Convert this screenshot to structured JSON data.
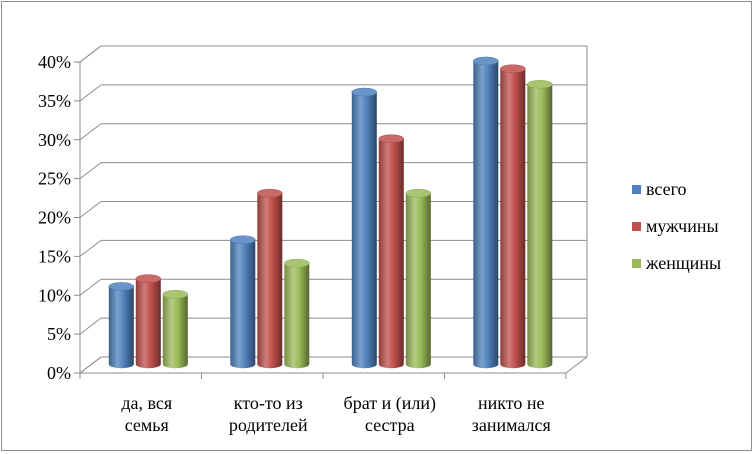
{
  "chart_data": {
    "type": "bar",
    "title": "",
    "xlabel": "",
    "ylabel": "",
    "ylim": [
      0,
      40
    ],
    "ytick_step": 5,
    "ytick_suffix": "%",
    "grid": true,
    "legend_position": "right",
    "categories": [
      [
        "да, вся",
        "семья"
      ],
      [
        "кто-то из",
        "родителей"
      ],
      [
        "брат и (или)",
        "сестра"
      ],
      [
        "никто не",
        "занимался"
      ]
    ],
    "series": [
      {
        "name": "всего",
        "color": "#4f81bd",
        "values": [
          10,
          16,
          35,
          39
        ]
      },
      {
        "name": "мужчины",
        "color": "#c0504d",
        "values": [
          11,
          22,
          29,
          38
        ]
      },
      {
        "name": "женщины",
        "color": "#9bbb59",
        "values": [
          9,
          13,
          22,
          36
        ]
      }
    ]
  }
}
